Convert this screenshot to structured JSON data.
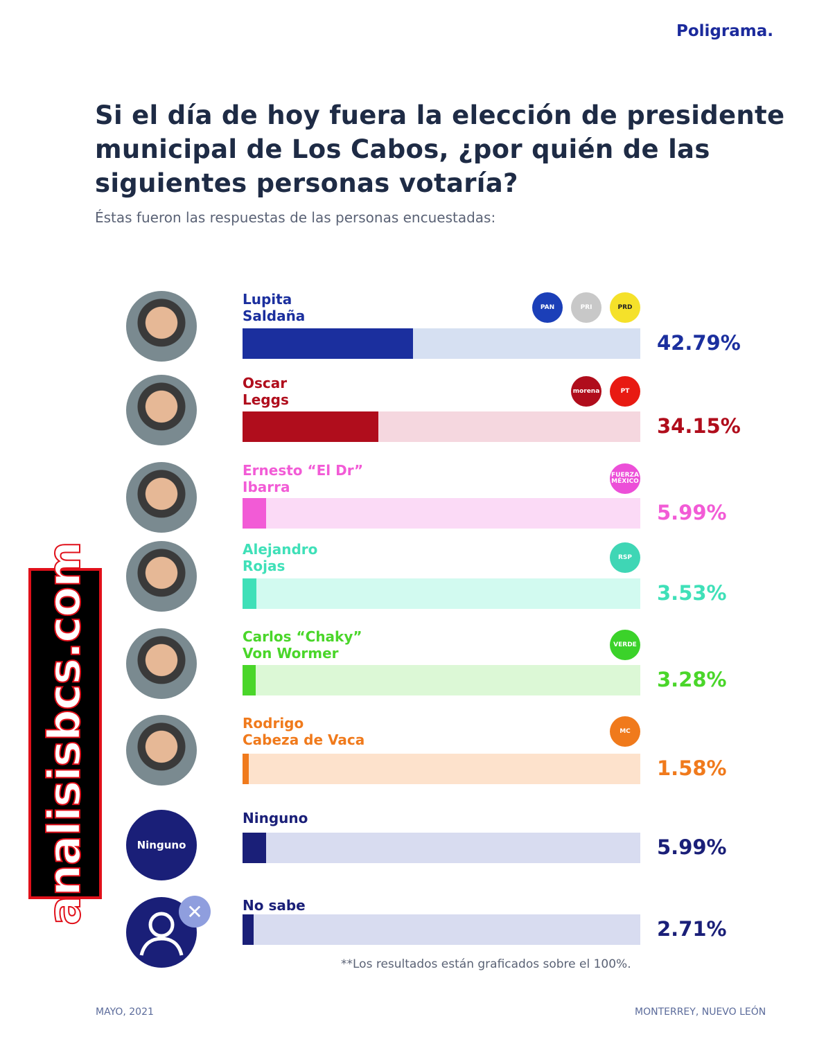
{
  "brand": "Poligrama.",
  "watermark": "analisisbcs.com",
  "chart_data": {
    "type": "bar",
    "title": "Si el día de hoy fuera la elección de presidente municipal de Los Cabos, ¿por quién de las siguientes personas votaría?",
    "subtitle": "Éstas fueron las respuestas de las personas encuestadas:",
    "xlim": [
      0,
      100
    ],
    "categories": [
      "Lupita\nSaldaña",
      "Oscar\nLeggs",
      "Ernesto “El Dr”\nIbarra",
      "Alejandro\nRojas",
      "Carlos “Chaky”\nVon Wormer",
      "Rodrigo\nCabeza de Vaca",
      "Ninguno",
      "No sabe"
    ],
    "values": [
      42.79,
      34.15,
      5.99,
      3.53,
      3.28,
      1.58,
      5.99,
      2.71
    ],
    "labels": [
      "42.79%",
      "34.15%",
      "5.99%",
      "3.53%",
      "3.28%",
      "1.58%",
      "5.99%",
      "2.71%"
    ],
    "colors": [
      "#1b2f9e",
      "#b00d1c",
      "#f25bd6",
      "#3fe0b8",
      "#4ad62a",
      "#f07a1c",
      "#1a1f78",
      "#1a1f78"
    ],
    "track_colors": [
      "#d6e0f2",
      "#f5d7df",
      "#fbdaf6",
      "#d2faf0",
      "#dcf8d6",
      "#fde2cc",
      "#d8dcf0",
      "#d8dcf0"
    ],
    "party_logos": [
      [
        "PAN",
        "PRI",
        "PRD"
      ],
      [
        "morena",
        "PT"
      ],
      [
        "FUERZA MÉXICO"
      ],
      [
        "RSP"
      ],
      [
        "VERDE"
      ],
      [
        "MC"
      ],
      [],
      []
    ],
    "avatar_texts": [
      "",
      "",
      "",
      "",
      "",
      "",
      "Ninguno",
      ""
    ],
    "note": "**Los resultados están graficados sobre el 100%.",
    "footer_left": "MAYO, 2021",
    "footer_right": "MONTERREY, NUEVO LEÓN"
  },
  "logo_colors": {
    "PAN": "#1b3fb8",
    "PRI": "#c8c8c8",
    "PRD": "#f5e12a",
    "morena": "#b00d1c",
    "PT": "#e81a12",
    "FUERZA MÉXICO": "#ec4fd8",
    "RSP": "#3fd6b5",
    "VERDE": "#3bd22a",
    "MC": "#f07a1c"
  }
}
